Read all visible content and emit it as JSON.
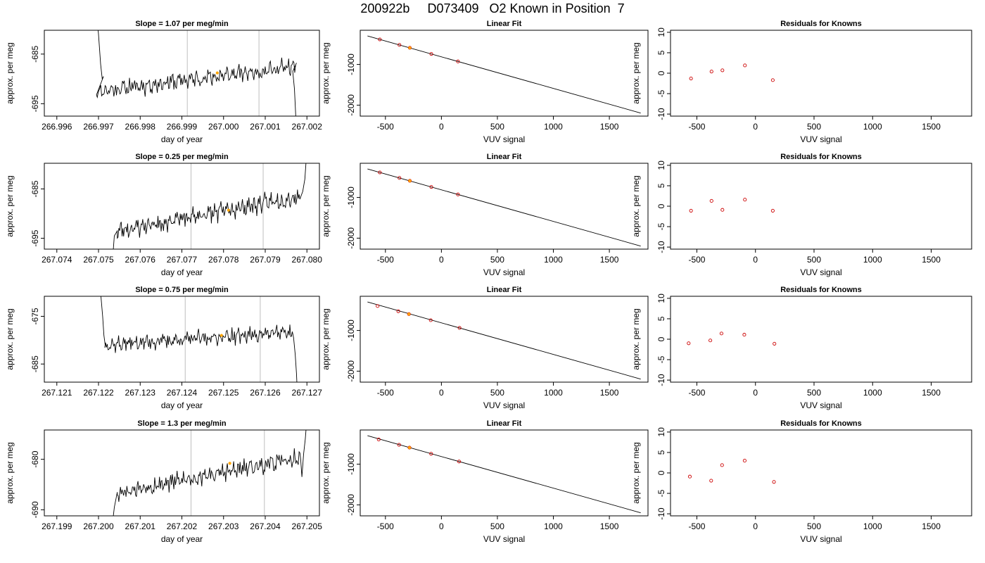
{
  "figure_title": "200922b     D073409   O2 Known in Position  7",
  "colors": {
    "trace": "#000000",
    "marker_orange": "#FFA500",
    "marker_red": "#CC0000",
    "vline": "#BEBEBE",
    "frame": "#000000"
  },
  "chart_data": [
    {
      "type": "line",
      "row": 0,
      "col": 0,
      "title": "Slope =  1.07  per meg/min",
      "xlabel": "day of year",
      "ylabel": "approx. per meg",
      "xlim": [
        266.9957,
        267.0023
      ],
      "ylim": [
        -697.5,
        -680.2
      ],
      "xticks": [
        266.996,
        266.997,
        266.998,
        266.999,
        267.0,
        267.001,
        267.002
      ],
      "xtick_labels": [
        "266.996",
        "266.997",
        "266.998",
        "266.999",
        "267.000",
        "267.001",
        "267.002"
      ],
      "yticks": [
        -685,
        -695
      ],
      "ytick_labels": [
        "-685",
        "-695"
      ],
      "vlines": [
        266.99913,
        267.00085
      ],
      "marker": {
        "x": 266.99985,
        "y": -688.8
      },
      "trace": {
        "x_start": 266.99695,
        "x_end": 267.00175,
        "base_start": -692.5,
        "base_end": -687.5,
        "amp": 1.4,
        "seed": 11,
        "lead": [
          [
            266.99693,
            -675
          ],
          [
            266.997,
            -681
          ],
          [
            266.99705,
            -687
          ],
          [
            266.99709,
            -690
          ],
          [
            266.99712,
            -689.5
          ]
        ],
        "trail": [
          [
            267.00166,
            -688.5
          ],
          [
            267.0017,
            -692
          ],
          [
            267.00173,
            -697
          ],
          [
            267.00176,
            -705
          ]
        ]
      }
    },
    {
      "type": "scatter",
      "row": 0,
      "col": 1,
      "title": "Linear Fit",
      "xlabel": "VUV signal",
      "ylabel": "approx. per meg",
      "xlim": [
        -725,
        1845
      ],
      "ylim": [
        -2270,
        -160
      ],
      "xticks": [
        -500,
        0,
        500,
        1000,
        1500
      ],
      "xtick_labels": [
        "-500",
        "0",
        "500",
        "1000",
        "1500"
      ],
      "yticks": [
        -1000,
        -2000
      ],
      "ytick_labels": [
        "-1000",
        "-2000"
      ],
      "line": {
        "x": [
          -660,
          1780
        ],
        "y": [
          -300,
          -2195
        ]
      },
      "points": [
        {
          "x": -550,
          "y": -385
        },
        {
          "x": -375,
          "y": -520
        },
        {
          "x": -282,
          "y": -592
        },
        {
          "x": -90,
          "y": -742
        },
        {
          "x": 148,
          "y": -927
        }
      ],
      "highlight": {
        "x": -282,
        "y": -592
      }
    },
    {
      "type": "scatter",
      "row": 0,
      "col": 2,
      "title": "Residuals for Knowns",
      "xlabel": "VUV signal",
      "ylabel": "approx. per meg",
      "xlim": [
        -725,
        1845
      ],
      "ylim": [
        -10.5,
        10.5
      ],
      "xticks": [
        -500,
        0,
        500,
        1000,
        1500
      ],
      "xtick_labels": [
        "-500",
        "0",
        "500",
        "1000",
        "1500"
      ],
      "yticks": [
        10,
        5,
        0,
        -5,
        -10
      ],
      "ytick_labels": [
        "10",
        "5",
        "0",
        "-5",
        "-10"
      ],
      "points": [
        {
          "x": -550,
          "y": -1.3
        },
        {
          "x": -375,
          "y": 0.4
        },
        {
          "x": -282,
          "y": 0.7
        },
        {
          "x": -90,
          "y": 1.9
        },
        {
          "x": 148,
          "y": -1.7
        }
      ]
    },
    {
      "type": "line",
      "row": 1,
      "col": 0,
      "title": "Slope =  0.25  per meg/min",
      "xlabel": "day of year",
      "ylabel": "approx. per meg",
      "xlim": [
        267.0737,
        267.0803
      ],
      "ylim": [
        -697.2,
        -679.8
      ],
      "xticks": [
        267.074,
        267.075,
        267.076,
        267.077,
        267.078,
        267.079,
        267.08
      ],
      "xtick_labels": [
        "267.074",
        "267.075",
        "267.076",
        "267.077",
        "267.078",
        "267.079",
        "267.080"
      ],
      "yticks": [
        -685,
        -695
      ],
      "ytick_labels": [
        "-685",
        "-695"
      ],
      "vlines": [
        267.07722,
        267.07895
      ],
      "marker": {
        "x": 267.07812,
        "y": -689.3
      },
      "trace": {
        "x_start": 267.07545,
        "x_end": 267.07985,
        "base_start": -693.5,
        "base_end": -686.5,
        "amp": 1.5,
        "seed": 23,
        "lead": [
          [
            267.07533,
            -700
          ],
          [
            267.07538,
            -694.5
          ],
          [
            267.07545,
            -693.5
          ]
        ],
        "trail": [
          [
            267.0799,
            -685.5
          ],
          [
            267.07995,
            -683
          ],
          [
            267.07998,
            -679.5
          ],
          [
            267.08002,
            -675
          ]
        ]
      }
    },
    {
      "type": "scatter",
      "row": 1,
      "col": 1,
      "title": "Linear Fit",
      "xlabel": "VUV signal",
      "ylabel": "approx. per meg",
      "xlim": [
        -725,
        1845
      ],
      "ylim": [
        -2270,
        -160
      ],
      "xticks": [
        -500,
        0,
        500,
        1000,
        1500
      ],
      "xtick_labels": [
        "-500",
        "0",
        "500",
        "1000",
        "1500"
      ],
      "yticks": [
        -1000,
        -2000
      ],
      "ytick_labels": [
        "-1000",
        "-2000"
      ],
      "line": {
        "x": [
          -660,
          1780
        ],
        "y": [
          -300,
          -2195
        ]
      },
      "points": [
        {
          "x": -550,
          "y": -385
        },
        {
          "x": -375,
          "y": -520
        },
        {
          "x": -282,
          "y": -592
        },
        {
          "x": -90,
          "y": -742
        },
        {
          "x": 148,
          "y": -927
        }
      ],
      "highlight": {
        "x": -282,
        "y": -592
      }
    },
    {
      "type": "scatter",
      "row": 1,
      "col": 2,
      "title": "Residuals for Knowns",
      "xlabel": "VUV signal",
      "ylabel": "approx. per meg",
      "xlim": [
        -725,
        1845
      ],
      "ylim": [
        -10.5,
        10.5
      ],
      "xticks": [
        -500,
        0,
        500,
        1000,
        1500
      ],
      "xtick_labels": [
        "-500",
        "0",
        "500",
        "1000",
        "1500"
      ],
      "yticks": [
        10,
        5,
        0,
        -5,
        -10
      ],
      "ytick_labels": [
        "10",
        "5",
        "0",
        "-5",
        "-10"
      ],
      "points": [
        {
          "x": -550,
          "y": -1.1
        },
        {
          "x": -375,
          "y": 1.3
        },
        {
          "x": -282,
          "y": -0.9
        },
        {
          "x": -90,
          "y": 1.6
        },
        {
          "x": 148,
          "y": -1.1
        }
      ]
    },
    {
      "type": "line",
      "row": 2,
      "col": 0,
      "title": "Slope =  0.75  per meg/min",
      "xlabel": "day of year",
      "ylabel": "approx. per meg",
      "xlim": [
        267.1207,
        267.1273
      ],
      "ylim": [
        -688.8,
        -670.8
      ],
      "xticks": [
        267.121,
        267.122,
        267.123,
        267.124,
        267.125,
        267.126,
        267.127
      ],
      "xtick_labels": [
        "267.121",
        "267.122",
        "267.123",
        "267.124",
        "267.125",
        "267.126",
        "267.127"
      ],
      "yticks": [
        -675,
        -685
      ],
      "ytick_labels": [
        "-675",
        "-685"
      ],
      "vlines": [
        267.12408,
        267.12588
      ],
      "marker": {
        "x": 267.12495,
        "y": -679.0
      },
      "trace": {
        "x_start": 267.12215,
        "x_end": 267.12665,
        "base_start": -681.0,
        "base_end": -678.3,
        "amp": 1.3,
        "seed": 37,
        "lead": [
          [
            267.12205,
            -670
          ],
          [
            267.1221,
            -675
          ],
          [
            267.12213,
            -679
          ],
          [
            267.12216,
            -681
          ]
        ],
        "trail": [
          [
            267.12668,
            -679.5
          ],
          [
            267.12672,
            -683
          ],
          [
            267.12675,
            -687
          ],
          [
            267.12678,
            -693
          ]
        ]
      }
    },
    {
      "type": "scatter",
      "row": 2,
      "col": 1,
      "title": "Linear Fit",
      "xlabel": "VUV signal",
      "ylabel": "approx. per meg",
      "xlim": [
        -725,
        1845
      ],
      "ylim": [
        -2270,
        -160
      ],
      "xticks": [
        -500,
        0,
        500,
        1000,
        1500
      ],
      "xtick_labels": [
        "-500",
        "0",
        "500",
        "1000",
        "1500"
      ],
      "yticks": [
        -1000,
        -2000
      ],
      "ytick_labels": [
        "-1000",
        "-2000"
      ],
      "line": {
        "x": [
          -660,
          1780
        ],
        "y": [
          -300,
          -2195
        ]
      },
      "points": [
        {
          "x": -570,
          "y": -400
        },
        {
          "x": -385,
          "y": -528
        },
        {
          "x": -290,
          "y": -598
        },
        {
          "x": -95,
          "y": -748
        },
        {
          "x": 162,
          "y": -938
        }
      ],
      "highlight": {
        "x": -290,
        "y": -598
      }
    },
    {
      "type": "scatter",
      "row": 2,
      "col": 2,
      "title": "Residuals for Knowns",
      "xlabel": "VUV signal",
      "ylabel": "approx. per meg",
      "xlim": [
        -725,
        1845
      ],
      "ylim": [
        -10.5,
        10.5
      ],
      "xticks": [
        -500,
        0,
        500,
        1000,
        1500
      ],
      "xtick_labels": [
        "-500",
        "0",
        "500",
        "1000",
        "1500"
      ],
      "yticks": [
        10,
        5,
        0,
        -5,
        -10
      ],
      "ytick_labels": [
        "10",
        "5",
        "0",
        "-5",
        "-10"
      ],
      "points": [
        {
          "x": -570,
          "y": -1.0
        },
        {
          "x": -385,
          "y": -0.3
        },
        {
          "x": -290,
          "y": 1.4
        },
        {
          "x": -95,
          "y": 1.1
        },
        {
          "x": 162,
          "y": -1.1
        }
      ]
    },
    {
      "type": "line",
      "row": 3,
      "col": 0,
      "title": "Slope =  1.3  per meg/min",
      "xlabel": "day of year",
      "ylabel": "approx. per meg",
      "xlim": [
        267.1987,
        267.2053
      ],
      "ylim": [
        -691.2,
        -674.2
      ],
      "xticks": [
        267.199,
        267.2,
        267.201,
        267.202,
        267.203,
        267.204,
        267.205
      ],
      "xtick_labels": [
        "267.199",
        "267.200",
        "267.201",
        "267.202",
        "267.203",
        "267.204",
        "267.205"
      ],
      "yticks": [
        -680,
        -690
      ],
      "ytick_labels": [
        "-680",
        "-690"
      ],
      "vlines": [
        267.20222,
        267.20398
      ],
      "marker": {
        "x": 267.20315,
        "y": -680.8
      },
      "trace": {
        "x_start": 267.20045,
        "x_end": 267.20485,
        "base_start": -686.5,
        "base_end": -679.8,
        "amp": 1.4,
        "seed": 53,
        "lead": [
          [
            267.20033,
            -693
          ],
          [
            267.20038,
            -689.5
          ],
          [
            267.20045,
            -686.5
          ]
        ],
        "trail": [
          [
            267.20488,
            -683.5
          ],
          [
            267.20492,
            -679
          ],
          [
            267.20496,
            -676
          ],
          [
            267.205,
            -672
          ]
        ]
      }
    },
    {
      "type": "scatter",
      "row": 3,
      "col": 1,
      "title": "Linear Fit",
      "xlabel": "VUV signal",
      "ylabel": "approx. per meg",
      "xlim": [
        -725,
        1845
      ],
      "ylim": [
        -2270,
        -160
      ],
      "xticks": [
        -500,
        0,
        500,
        1000,
        1500
      ],
      "xtick_labels": [
        "-500",
        "0",
        "500",
        "1000",
        "1500"
      ],
      "yticks": [
        -1000,
        -2000
      ],
      "ytick_labels": [
        "-1000",
        "-2000"
      ],
      "line": {
        "x": [
          -660,
          1780
        ],
        "y": [
          -300,
          -2195
        ]
      },
      "points": [
        {
          "x": -560,
          "y": -392
        },
        {
          "x": -378,
          "y": -524
        },
        {
          "x": -285,
          "y": -594
        },
        {
          "x": -92,
          "y": -744
        },
        {
          "x": 158,
          "y": -935
        }
      ],
      "highlight": {
        "x": -285,
        "y": -594
      }
    },
    {
      "type": "scatter",
      "row": 3,
      "col": 2,
      "title": "Residuals for Knowns",
      "xlabel": "VUV signal",
      "ylabel": "approx. per meg",
      "xlim": [
        -725,
        1845
      ],
      "ylim": [
        -10.5,
        10.5
      ],
      "xticks": [
        -500,
        0,
        500,
        1000,
        1500
      ],
      "xtick_labels": [
        "-500",
        "0",
        "500",
        "1000",
        "1500"
      ],
      "yticks": [
        10,
        5,
        0,
        -5,
        -10
      ],
      "ytick_labels": [
        "10",
        "5",
        "0",
        "-5",
        "-10"
      ],
      "points": [
        {
          "x": -560,
          "y": -0.9
        },
        {
          "x": -378,
          "y": -1.9
        },
        {
          "x": -285,
          "y": 1.9
        },
        {
          "x": -92,
          "y": 3.0
        },
        {
          "x": 158,
          "y": -2.2
        }
      ]
    }
  ]
}
